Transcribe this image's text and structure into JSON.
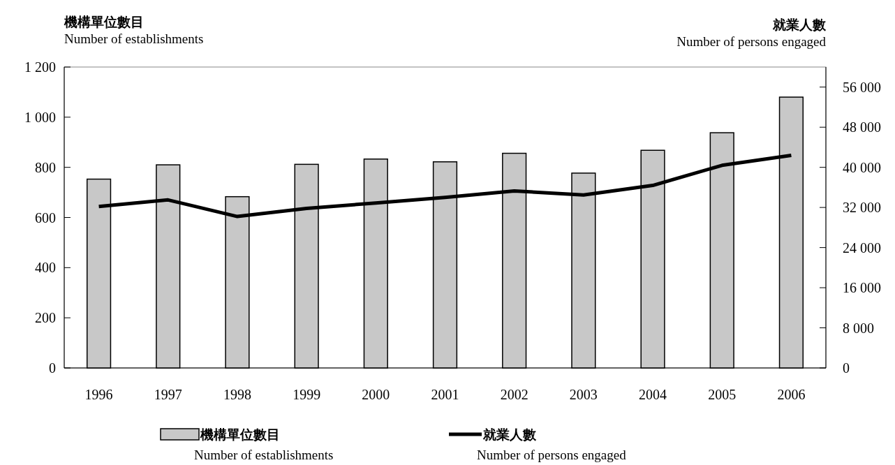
{
  "chart_data": {
    "type": "bar",
    "ylabel": "機構單位數目\nNumber of establishments",
    "y2label": "就業人數\nNumber of persons engaged",
    "categories": [
      "1996",
      "1997",
      "1998",
      "1999",
      "2000",
      "2001",
      "2002",
      "2003",
      "2004",
      "2005",
      "2006"
    ],
    "series": [
      {
        "name": "機構單位數目\nNumber of establishments",
        "color": "#c8c8c8",
        "values": [
          753,
          810,
          683,
          812,
          833,
          822,
          856,
          777,
          868,
          938,
          1080
        ]
      },
      {
        "name": "就業人數\nNumber of persons engaged",
        "color": "#000000",
        "type": "line",
        "axis": "y2",
        "values": [
          32200,
          33500,
          30200,
          31800,
          32900,
          34000,
          35300,
          34500,
          36400,
          40400,
          42400
        ]
      }
    ],
    "ylim": [
      0,
      1200
    ],
    "yticks": [
      0,
      200,
      400,
      600,
      800,
      {
        "value": 1000,
        "label": "1 000"
      },
      {
        "value": 1200,
        "label": "1 200"
      }
    ],
    "y2lim": [
      0,
      60000
    ],
    "y2ticks": [
      0,
      {
        "value": 8000,
        "label": "8 000"
      },
      {
        "value": 16000,
        "label": "16 000"
      },
      {
        "value": 24000,
        "label": "24 000"
      },
      {
        "value": 32000,
        "label": "32 000"
      },
      {
        "value": 40000,
        "label": "40 000"
      },
      {
        "value": 48000,
        "label": "48 000"
      },
      {
        "value": 56000,
        "label": "56 000"
      }
    ],
    "grid": false,
    "legend": "bottom",
    "marker": "none",
    "line_style": "solid"
  }
}
